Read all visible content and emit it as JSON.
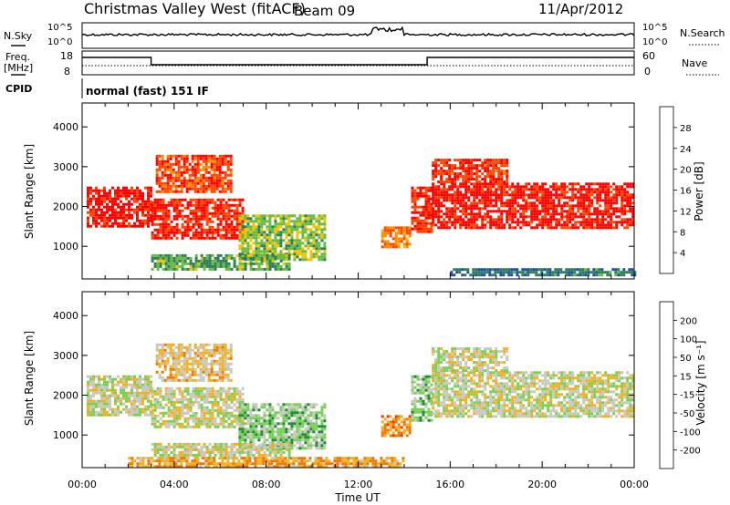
{
  "header": {
    "title": "Christmas Valley West (fitACF)",
    "beam": "Beam 09",
    "date": "11/Apr/2012"
  },
  "noise_panel": {
    "left_label": "N.Sky",
    "left_ticks": [
      "10^5",
      "10^0"
    ],
    "right_label": "N.Search",
    "right_ticks": [
      "10^5",
      "10^0"
    ]
  },
  "freq_panel": {
    "left_label_1": "Freq.",
    "left_label_2": "[MHz]",
    "left_ticks": [
      "18",
      "8"
    ],
    "right_label": "Nave",
    "right_ticks": [
      "60",
      "0"
    ]
  },
  "cpid": {
    "label": "CPID",
    "program": "normal (fast) 151 IF"
  },
  "power_panel": {
    "ylabel": "Slant Range [km]",
    "yticks": [
      "4000",
      "3000",
      "2000",
      "1000"
    ],
    "colorbar_label": "Power [dB]",
    "colorbar_ticks": [
      "28",
      "24",
      "20",
      "16",
      "12",
      "8",
      "4"
    ],
    "colors": [
      "#0000ff",
      "#1f4fa0",
      "#2e7d5a",
      "#66bb44",
      "#f2c400",
      "#ff8c00",
      "#ff4500",
      "#ff0000"
    ]
  },
  "velocity_panel": {
    "ylabel": "Slant Range [km]",
    "yticks": [
      "4000",
      "3000",
      "2000",
      "1000"
    ],
    "colorbar_label": "Velocity [m s⁻¹]",
    "colorbar_ticks": [
      "200",
      "100",
      "50",
      "15",
      "-15",
      "-50",
      "-100",
      "-200"
    ],
    "colors": [
      "#1530b0",
      "#2f6bcc",
      "#1e8a3a",
      "#77d055",
      "#c8c8c0",
      "#f0b020",
      "#f07800",
      "#ff3000",
      "#ff0000"
    ]
  },
  "x_axis": {
    "ticks": [
      "00:00",
      "04:00",
      "08:00",
      "12:00",
      "16:00",
      "20:00",
      "00:00"
    ],
    "label": "Time UT"
  },
  "chart_data": [
    {
      "type": "heatmap",
      "title": "Power [dB]",
      "x_label": "Time UT",
      "y_label": "Slant Range [km]",
      "x_range_hours": [
        0,
        24
      ],
      "y_range_km": [
        180,
        4600
      ],
      "value_range": [
        0,
        30
      ],
      "regions": [
        {
          "t0": 0.2,
          "t1": 3.0,
          "r0": 1500,
          "r1": 2500,
          "value": 28
        },
        {
          "t0": 3.0,
          "t1": 7.0,
          "r0": 1200,
          "r1": 2200,
          "value": 27
        },
        {
          "t0": 3.2,
          "t1": 6.5,
          "r0": 2400,
          "r1": 3300,
          "value": 25
        },
        {
          "t0": 6.8,
          "t1": 10.5,
          "r0": 700,
          "r1": 1800,
          "value": 14
        },
        {
          "t0": 3.0,
          "t1": 9.0,
          "r0": 400,
          "r1": 800,
          "value": 12
        },
        {
          "t0": 13.0,
          "t1": 14.2,
          "r0": 1000,
          "r1": 1500,
          "value": 22
        },
        {
          "t0": 14.3,
          "t1": 15.2,
          "r0": 1400,
          "r1": 2500,
          "value": 26
        },
        {
          "t0": 15.2,
          "t1": 24.0,
          "r0": 1500,
          "r1": 2600,
          "value": 28
        },
        {
          "t0": 15.2,
          "t1": 18.5,
          "r0": 2600,
          "r1": 3200,
          "value": 26
        },
        {
          "t0": 16.0,
          "t1": 24.0,
          "r0": 250,
          "r1": 450,
          "value": 8
        }
      ]
    },
    {
      "type": "heatmap",
      "title": "Velocity [m s⁻¹]",
      "x_label": "Time UT",
      "y_label": "Slant Range [km]",
      "x_range_hours": [
        0,
        24
      ],
      "y_range_km": [
        180,
        4600
      ],
      "value_range": [
        -200,
        200
      ],
      "regions": [
        {
          "t0": 0.2,
          "t1": 3.0,
          "r0": 1500,
          "r1": 2500,
          "value": 0
        },
        {
          "t0": 3.0,
          "t1": 7.0,
          "r0": 1200,
          "r1": 2200,
          "value": 0
        },
        {
          "t0": 3.2,
          "t1": 6.5,
          "r0": 2400,
          "r1": 3300,
          "value": -30
        },
        {
          "t0": 6.8,
          "t1": 10.5,
          "r0": 700,
          "r1": 1800,
          "value": 40
        },
        {
          "t0": 3.0,
          "t1": 9.0,
          "r0": 400,
          "r1": 800,
          "value": 0
        },
        {
          "t0": 13.0,
          "t1": 14.2,
          "r0": 1000,
          "r1": 1500,
          "value": -80
        },
        {
          "t0": 14.3,
          "t1": 15.2,
          "r0": 1400,
          "r1": 2500,
          "value": 40
        },
        {
          "t0": 15.2,
          "t1": 24.0,
          "r0": 1500,
          "r1": 2600,
          "value": 0
        },
        {
          "t0": 15.2,
          "t1": 18.5,
          "r0": 2600,
          "r1": 3200,
          "value": 0
        },
        {
          "t0": 2.0,
          "t1": 14.0,
          "r0": 200,
          "r1": 450,
          "value": -60
        }
      ]
    }
  ]
}
